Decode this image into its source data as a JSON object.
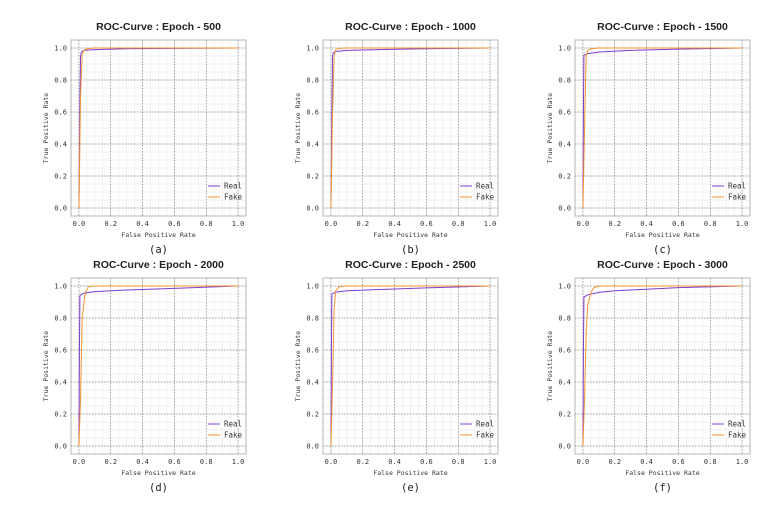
{
  "chart_data": [
    {
      "type": "line",
      "title": "ROC-Curve : Epoch - 500",
      "caption": "(a)",
      "xlabel": "False Positive Rate",
      "ylabel": "True Positive Rate",
      "xlim": [
        0,
        1.0
      ],
      "ylim": [
        0,
        1.0
      ],
      "xticks": [
        "0.0",
        "0.2",
        "0.4",
        "0.6",
        "0.8",
        "1.0"
      ],
      "yticks": [
        "0.0",
        "0.2",
        "0.4",
        "0.6",
        "0.8",
        "1.0"
      ],
      "grid": true,
      "legend": "lower right",
      "series": [
        {
          "name": "Real",
          "color": "#7b3fd0",
          "x": [
            0,
            0.005,
            0.01,
            0.015,
            0.03,
            0.1,
            0.3,
            0.6,
            1.0
          ],
          "y": [
            0,
            0.6,
            0.95,
            0.975,
            0.985,
            0.99,
            0.995,
            0.998,
            1.0
          ]
        },
        {
          "name": "Fake",
          "color": "#f5932e",
          "x": [
            0,
            0.01,
            0.02,
            0.03,
            0.05,
            0.1,
            0.3,
            1.0
          ],
          "y": [
            0,
            0.7,
            0.96,
            0.985,
            0.995,
            1.0,
            1.0,
            1.0
          ]
        }
      ]
    },
    {
      "type": "line",
      "title": "ROC-Curve : Epoch - 1000",
      "caption": "(b)",
      "xlabel": "False Positive Rate",
      "ylabel": "True Positive Rate",
      "xlim": [
        0,
        1.0
      ],
      "ylim": [
        0,
        1.0
      ],
      "xticks": [
        "0.0",
        "0.2",
        "0.4",
        "0.6",
        "0.8",
        "1.0"
      ],
      "yticks": [
        "0.0",
        "0.2",
        "0.4",
        "0.6",
        "0.8",
        "1.0"
      ],
      "grid": true,
      "legend": "lower right",
      "series": [
        {
          "name": "Real",
          "color": "#7b3fd0",
          "x": [
            0,
            0.005,
            0.01,
            0.015,
            0.03,
            0.1,
            0.3,
            0.6,
            1.0
          ],
          "y": [
            0,
            0.5,
            0.95,
            0.97,
            0.978,
            0.985,
            0.99,
            0.995,
            1.0
          ]
        },
        {
          "name": "Fake",
          "color": "#f5932e",
          "x": [
            0,
            0.01,
            0.02,
            0.03,
            0.05,
            0.1,
            0.3,
            1.0
          ],
          "y": [
            0,
            0.6,
            0.95,
            0.99,
            0.998,
            1.0,
            1.0,
            1.0
          ]
        }
      ]
    },
    {
      "type": "line",
      "title": "ROC-Curve : Epoch - 1500",
      "caption": "(c)",
      "xlabel": "False Positive Rate",
      "ylabel": "True Positive Rate",
      "xlim": [
        0,
        1.0
      ],
      "ylim": [
        0,
        1.0
      ],
      "xticks": [
        "0.0",
        "0.2",
        "0.4",
        "0.6",
        "0.8",
        "1.0"
      ],
      "yticks": [
        "0.0",
        "0.2",
        "0.4",
        "0.6",
        "0.8",
        "1.0"
      ],
      "grid": true,
      "legend": "lower right",
      "series": [
        {
          "name": "Real",
          "color": "#7b3fd0",
          "x": [
            0,
            0.003,
            0.006,
            0.03,
            0.1,
            0.3,
            0.6,
            1.0
          ],
          "y": [
            0,
            0.6,
            0.955,
            0.965,
            0.975,
            0.985,
            0.993,
            1.0
          ]
        },
        {
          "name": "Fake",
          "color": "#f5932e",
          "x": [
            0,
            0.01,
            0.02,
            0.03,
            0.05,
            0.1,
            0.3,
            1.0
          ],
          "y": [
            0,
            0.5,
            0.95,
            0.985,
            0.995,
            1.0,
            1.0,
            1.0
          ]
        }
      ]
    },
    {
      "type": "line",
      "title": "ROC-Curve : Epoch - 2000",
      "caption": "(d)",
      "xlabel": "False Positive Rate",
      "ylabel": "True Positive Rate",
      "xlim": [
        0,
        1.0
      ],
      "ylim": [
        0,
        1.0
      ],
      "xticks": [
        "0.0",
        "0.2",
        "0.4",
        "0.6",
        "0.8",
        "1.0"
      ],
      "yticks": [
        "0.0",
        "0.2",
        "0.4",
        "0.6",
        "0.8",
        "1.0"
      ],
      "grid": true,
      "legend": "lower right",
      "series": [
        {
          "name": "Real",
          "color": "#7b3fd0",
          "x": [
            0,
            0.003,
            0.006,
            0.03,
            0.1,
            0.3,
            0.6,
            1.0
          ],
          "y": [
            0,
            0.6,
            0.94,
            0.955,
            0.965,
            0.975,
            0.985,
            1.0
          ]
        },
        {
          "name": "Fake",
          "color": "#f5932e",
          "x": [
            0,
            0.01,
            0.02,
            0.04,
            0.06,
            0.1,
            0.3,
            1.0
          ],
          "y": [
            0,
            0.3,
            0.8,
            0.96,
            0.995,
            1.0,
            1.0,
            1.0
          ]
        }
      ]
    },
    {
      "type": "line",
      "title": "ROC-Curve : Epoch - 2500",
      "caption": "(e)",
      "xlabel": "False Positive Rate",
      "ylabel": "True Positive Rate",
      "xlim": [
        0,
        1.0
      ],
      "ylim": [
        0,
        1.0
      ],
      "xticks": [
        "0.0",
        "0.2",
        "0.4",
        "0.6",
        "0.8",
        "1.0"
      ],
      "yticks": [
        "0.0",
        "0.2",
        "0.4",
        "0.6",
        "0.8",
        "1.0"
      ],
      "grid": true,
      "legend": "lower right",
      "series": [
        {
          "name": "Real",
          "color": "#7b3fd0",
          "x": [
            0,
            0.003,
            0.006,
            0.03,
            0.1,
            0.3,
            0.6,
            1.0
          ],
          "y": [
            0,
            0.6,
            0.95,
            0.962,
            0.97,
            0.978,
            0.988,
            1.0
          ]
        },
        {
          "name": "Fake",
          "color": "#f5932e",
          "x": [
            0,
            0.01,
            0.02,
            0.03,
            0.05,
            0.1,
            0.3,
            1.0
          ],
          "y": [
            0,
            0.4,
            0.85,
            0.97,
            0.995,
            1.0,
            1.0,
            1.0
          ]
        }
      ]
    },
    {
      "type": "line",
      "title": "ROC-Curve : Epoch - 3000",
      "caption": "(f)",
      "xlabel": "False Positive Rate",
      "ylabel": "True Positive Rate",
      "xlim": [
        0,
        1.0
      ],
      "ylim": [
        0,
        1.0
      ],
      "xticks": [
        "0.0",
        "0.2",
        "0.4",
        "0.6",
        "0.8",
        "1.0"
      ],
      "yticks": [
        "0.0",
        "0.2",
        "0.4",
        "0.6",
        "0.8",
        "1.0"
      ],
      "grid": true,
      "legend": "lower right",
      "series": [
        {
          "name": "Real",
          "color": "#7b3fd0",
          "x": [
            0,
            0.003,
            0.006,
            0.03,
            0.1,
            0.2,
            0.4,
            0.6,
            1.0
          ],
          "y": [
            0,
            0.6,
            0.93,
            0.945,
            0.96,
            0.97,
            0.98,
            0.99,
            1.0
          ]
        },
        {
          "name": "Fake",
          "color": "#f5932e",
          "x": [
            0,
            0.01,
            0.02,
            0.03,
            0.05,
            0.07,
            0.1,
            0.3,
            1.0
          ],
          "y": [
            0,
            0.3,
            0.7,
            0.88,
            0.96,
            0.99,
            1.0,
            1.0,
            1.0
          ]
        }
      ]
    }
  ]
}
